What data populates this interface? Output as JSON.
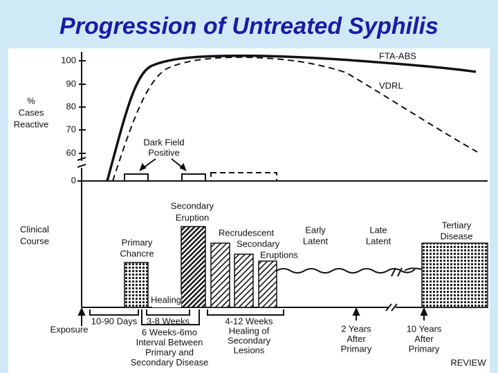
{
  "title": "Progression of Untreated Syphilis",
  "y_axis_label": [
    "%",
    "Cases",
    "Reactive"
  ],
  "y_ticks": [
    100,
    90,
    80,
    70,
    60,
    0
  ],
  "series_labels": [
    "FTA-ABS",
    "VDRL"
  ],
  "dark_field": [
    "Dark Field",
    "Positive"
  ],
  "clinical_course": [
    "Clinical",
    "Course"
  ],
  "primary_chancre": [
    "Primary",
    "Chancre"
  ],
  "secondary_eruption": [
    "Secondary",
    "Eruption"
  ],
  "recrudescent": [
    "Recrudescent",
    "Secondary",
    "Eruptions"
  ],
  "early_latent": [
    "Early",
    "Latent"
  ],
  "late_latent": [
    "Late",
    "Latent"
  ],
  "tertiary": [
    "Tertiary",
    "Disease"
  ],
  "healing": "Healing",
  "exposure": "Exposure",
  "interval_primary": "10-90 Days",
  "interval_secondary": "3-8 Weeks",
  "interval_between": [
    "6 Weeks-6mo",
    "Interval Between",
    "Primary and",
    "Secondary Disease"
  ],
  "healing_secondary": [
    "4-12 Weeks",
    "Healing of",
    "Secondary",
    "Lesions"
  ],
  "two_years": [
    "2 Years",
    "After",
    "Primary"
  ],
  "ten_years": [
    "10 Years",
    "After",
    "Primary"
  ],
  "footer": "REVIEW"
}
